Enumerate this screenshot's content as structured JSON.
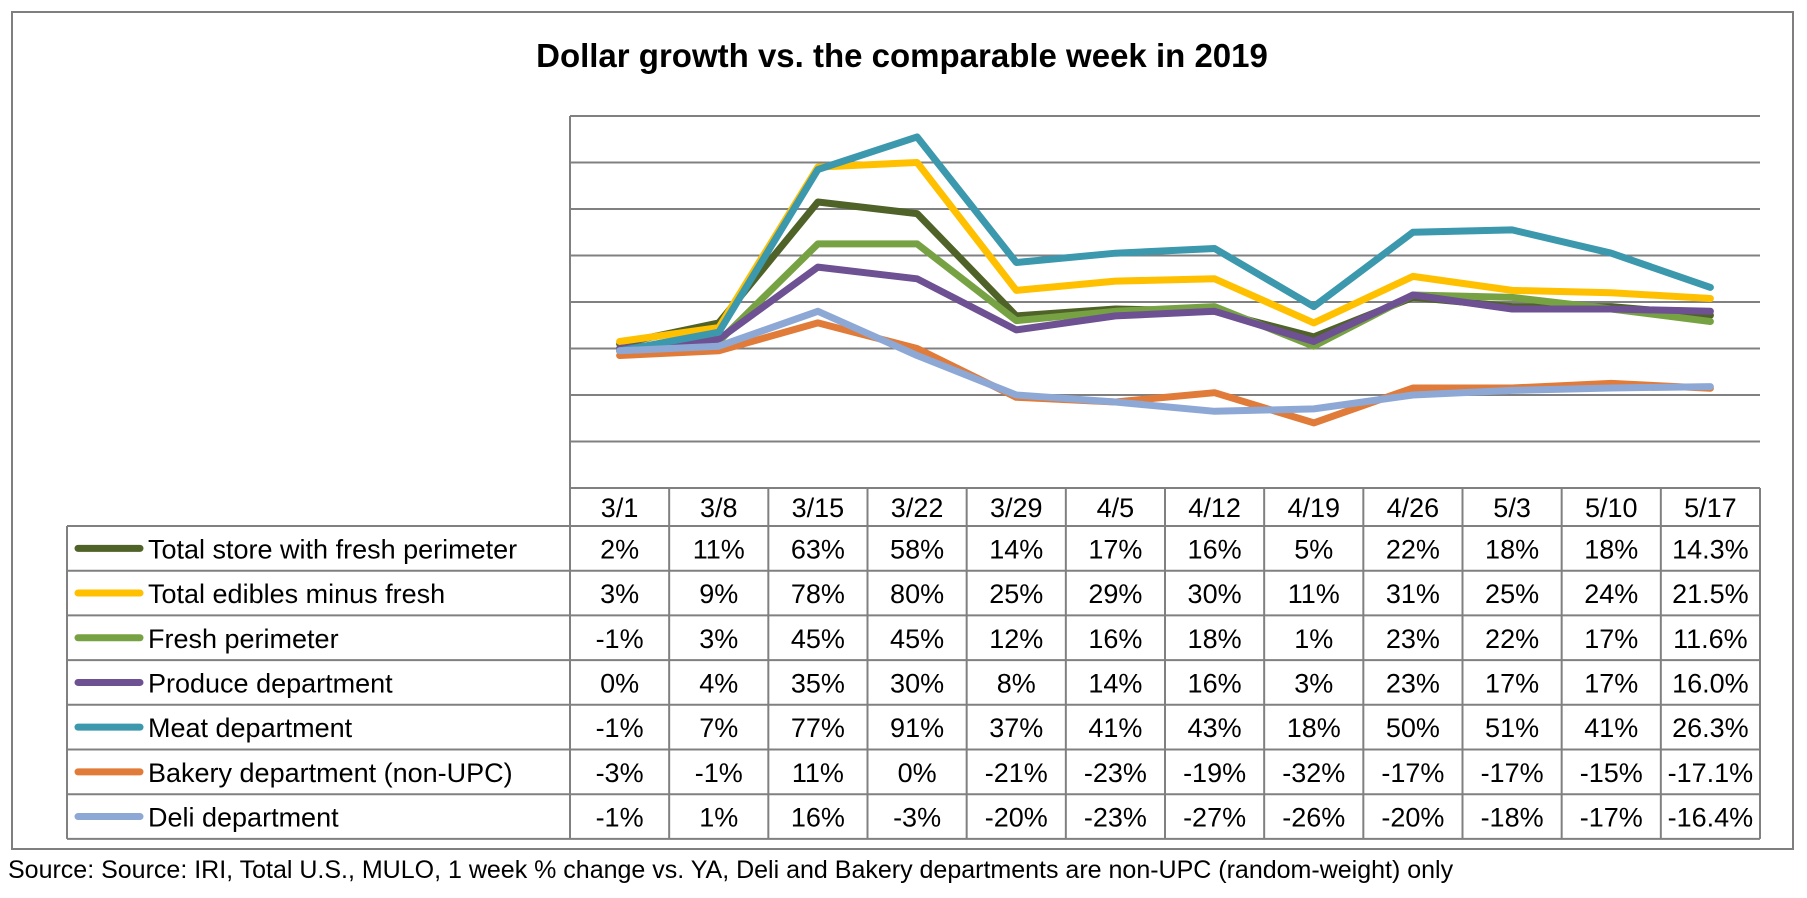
{
  "chart_data": {
    "type": "line",
    "title": "Dollar growth vs. the comparable week in 2019",
    "categories": [
      "3/1",
      "3/8",
      "3/15",
      "3/22",
      "3/29",
      "4/5",
      "4/12",
      "4/19",
      "4/26",
      "5/3",
      "5/10",
      "5/17"
    ],
    "ylim": [
      -60,
      100
    ],
    "grid": true,
    "legend": "table-left",
    "series": [
      {
        "name": "Total store with fresh perimeter",
        "color": "#4f6228",
        "values": [
          2,
          11,
          63,
          58,
          14,
          17,
          16,
          5,
          22,
          18,
          18,
          14.3
        ],
        "labels": [
          "2%",
          "11%",
          "63%",
          "58%",
          "14%",
          "17%",
          "16%",
          "5%",
          "22%",
          "18%",
          "18%",
          "14.3%"
        ]
      },
      {
        "name": "Total edibles minus fresh",
        "color": "#ffc000",
        "values": [
          3,
          9,
          78,
          80,
          25,
          29,
          30,
          11,
          31,
          25,
          24,
          21.5
        ],
        "labels": [
          "3%",
          "9%",
          "78%",
          "80%",
          "25%",
          "29%",
          "30%",
          "11%",
          "31%",
          "25%",
          "24%",
          "21.5%"
        ]
      },
      {
        "name": "Fresh perimeter",
        "color": "#77a244",
        "values": [
          -1,
          3,
          45,
          45,
          12,
          16,
          18,
          1,
          23,
          22,
          17,
          11.6
        ],
        "labels": [
          "-1%",
          "3%",
          "45%",
          "45%",
          "12%",
          "16%",
          "18%",
          "1%",
          "23%",
          "22%",
          "17%",
          "11.6%"
        ]
      },
      {
        "name": "Produce department",
        "color": "#6e5192",
        "values": [
          0,
          4,
          35,
          30,
          8,
          14,
          16,
          3,
          23,
          17,
          17,
          16.0
        ],
        "labels": [
          "0%",
          "4%",
          "35%",
          "30%",
          "8%",
          "14%",
          "16%",
          "3%",
          "23%",
          "17%",
          "17%",
          "16.0%"
        ]
      },
      {
        "name": "Meat department",
        "color": "#3b98ad",
        "values": [
          -1,
          7,
          77,
          91,
          37,
          41,
          43,
          18,
          50,
          51,
          41,
          26.3
        ],
        "labels": [
          "-1%",
          "7%",
          "77%",
          "91%",
          "37%",
          "41%",
          "43%",
          "18%",
          "50%",
          "51%",
          "41%",
          "26.3%"
        ]
      },
      {
        "name": "Bakery department (non-UPC)",
        "color": "#e07b39",
        "values": [
          -3,
          -1,
          11,
          0,
          -21,
          -23,
          -19,
          -32,
          -17,
          -17,
          -15,
          -17.1
        ],
        "labels": [
          "-3%",
          "-1%",
          "11%",
          "0%",
          "-21%",
          "-23%",
          "-19%",
          "-32%",
          "-17%",
          "-17%",
          "-15%",
          "-17.1%"
        ]
      },
      {
        "name": "Deli department",
        "color": "#8ea8d6",
        "values": [
          -1,
          1,
          16,
          -3,
          -20,
          -23,
          -27,
          -26,
          -20,
          -18,
          -17,
          -16.4
        ],
        "labels": [
          "-1%",
          "1%",
          "16%",
          "-3%",
          "-20%",
          "-23%",
          "-27%",
          "-26%",
          "-20%",
          "-18%",
          "-17%",
          "-16.4%"
        ]
      }
    ]
  },
  "footer": {
    "source": "Source: Source: IRI, Total U.S., MULO, 1 week % change vs. YA, Deli and Bakery departments are non-UPC (random-weight) only"
  }
}
